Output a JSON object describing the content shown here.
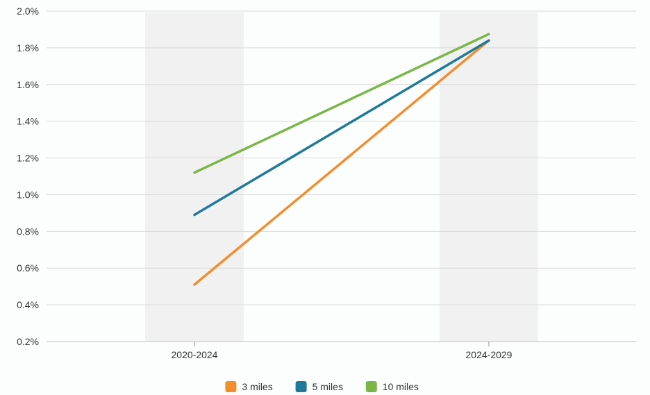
{
  "chart_data": {
    "type": "line",
    "categories": [
      "2020-2024",
      "2024-2029"
    ],
    "series": [
      {
        "name": "3 miles",
        "color": "#f28e2b",
        "values": [
          0.0051,
          0.0184
        ]
      },
      {
        "name": "5 miles",
        "color": "#1f7a99",
        "values": [
          0.0089,
          0.0184
        ]
      },
      {
        "name": "10 miles",
        "color": "#7ab648",
        "values": [
          0.0112,
          0.01875
        ]
      }
    ],
    "y_ticks": [
      "0.2%",
      "0.4%",
      "0.6%",
      "0.8%",
      "1.0%",
      "1.2%",
      "1.4%",
      "1.6%",
      "1.8%",
      "2.0%"
    ],
    "ylim": [
      0.002,
      0.02
    ],
    "grid": true,
    "category_bands": true,
    "legend_position": "bottom-center"
  }
}
